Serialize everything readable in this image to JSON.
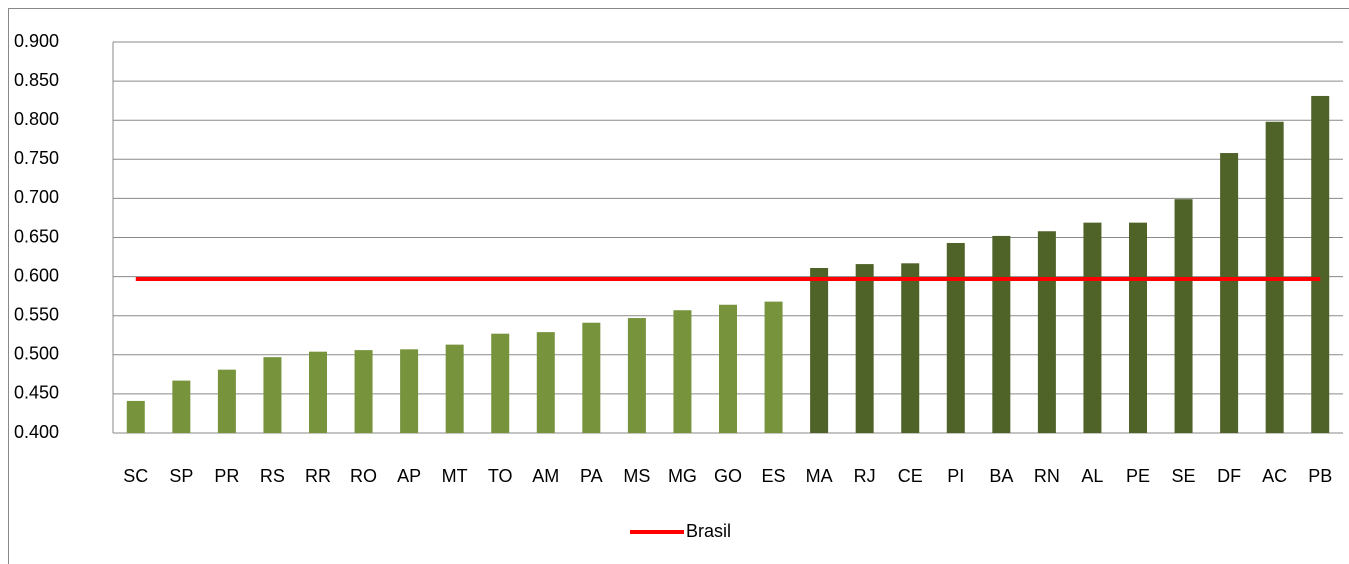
{
  "chart_data": {
    "type": "bar",
    "categories": [
      "SC",
      "SP",
      "PR",
      "RS",
      "RR",
      "RO",
      "AP",
      "MT",
      "TO",
      "AM",
      "PA",
      "MS",
      "MG",
      "GO",
      "ES",
      "MA",
      "RJ",
      "CE",
      "PI",
      "BA",
      "RN",
      "AL",
      "PE",
      "SE",
      "DF",
      "AC",
      "PB"
    ],
    "values": [
      0.441,
      0.467,
      0.481,
      0.497,
      0.504,
      0.506,
      0.507,
      0.513,
      0.527,
      0.529,
      0.541,
      0.547,
      0.557,
      0.564,
      0.568,
      0.611,
      0.616,
      0.617,
      0.643,
      0.652,
      0.658,
      0.669,
      0.669,
      0.699,
      0.758,
      0.798,
      0.831
    ],
    "bar_colors": [
      "#77933c",
      "#77933c",
      "#77933c",
      "#77933c",
      "#77933c",
      "#77933c",
      "#77933c",
      "#77933c",
      "#77933c",
      "#77933c",
      "#77933c",
      "#77933c",
      "#77933c",
      "#77933c",
      "#77933c",
      "#4f6228",
      "#4f6228",
      "#4f6228",
      "#4f6228",
      "#4f6228",
      "#4f6228",
      "#4f6228",
      "#4f6228",
      "#4f6228",
      "#4f6228",
      "#4f6228",
      "#4f6228"
    ],
    "reference_lines": [
      {
        "name": "Brasil",
        "value": 0.597,
        "color": "#ff0000"
      }
    ],
    "ylim": [
      0.4,
      0.9
    ],
    "yticks": [
      {
        "value": 0.4,
        "label": "0.400"
      },
      {
        "value": 0.45,
        "label": "0.450"
      },
      {
        "value": 0.5,
        "label": "0.500"
      },
      {
        "value": 0.55,
        "label": "0.550"
      },
      {
        "value": 0.6,
        "label": "0.600"
      },
      {
        "value": 0.65,
        "label": "0.650"
      },
      {
        "value": 0.7,
        "label": "0.700"
      },
      {
        "value": 0.75,
        "label": "0.750"
      },
      {
        "value": 0.8,
        "label": "0.800"
      },
      {
        "value": 0.85,
        "label": "0.850"
      },
      {
        "value": 0.9,
        "label": "0.900"
      }
    ],
    "grid": true,
    "legend": "bottom"
  }
}
